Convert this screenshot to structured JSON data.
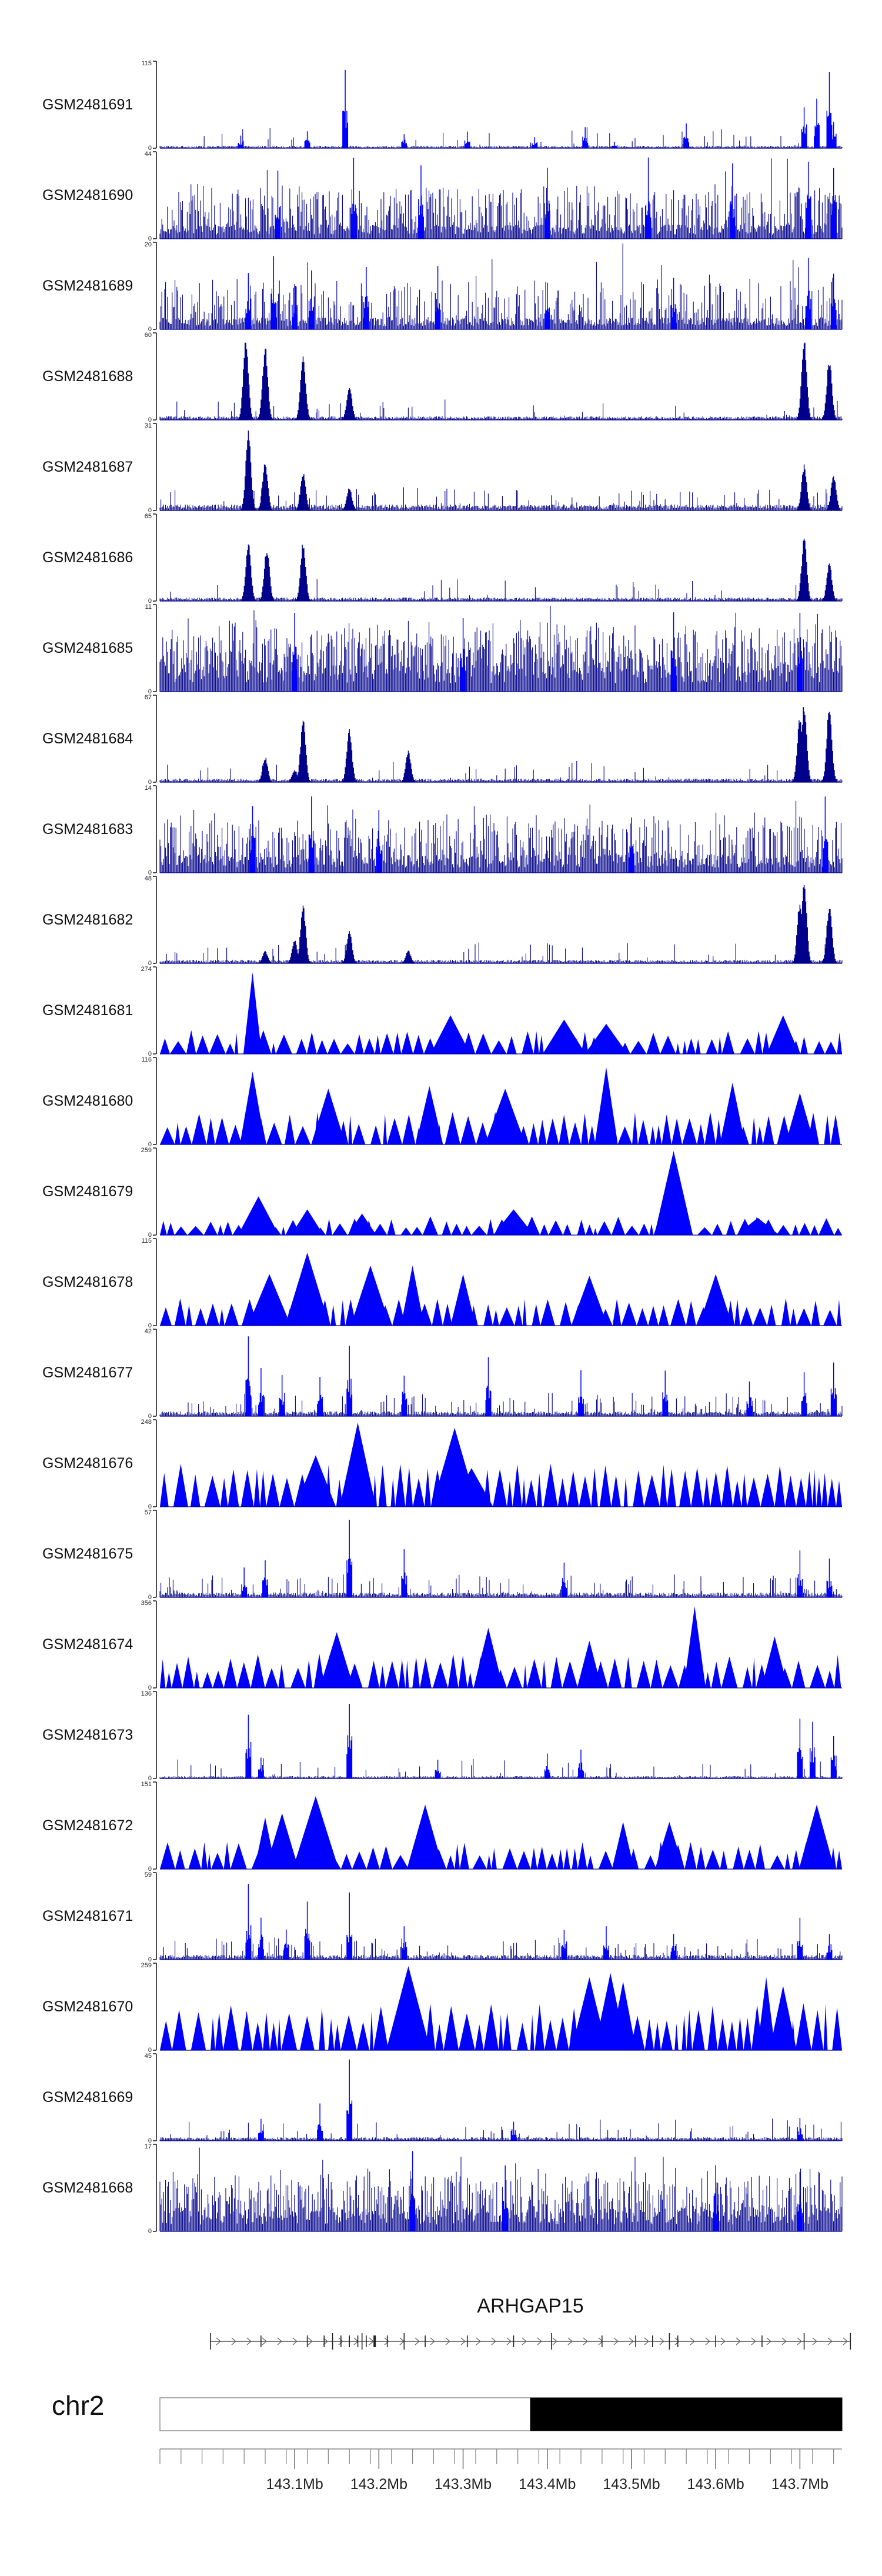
{
  "chart_data": {
    "type": "genome-tracks",
    "colors": {
      "signal": "#0000ff",
      "signal_dark": "#00008b",
      "axis": "#000000"
    },
    "tracks": [
      {
        "label": "GSM2481691",
        "ymax": 115,
        "ymin": 0,
        "style": "spike",
        "baseline": 0.02,
        "noise": 0.06,
        "peaks": [
          [
            143.16,
            1.0
          ],
          [
            143.036,
            0.17
          ],
          [
            143.115,
            0.23
          ],
          [
            143.23,
            0.19
          ],
          [
            143.305,
            0.2
          ],
          [
            143.385,
            0.14
          ],
          [
            143.445,
            0.26
          ],
          [
            143.48,
            0.08
          ],
          [
            143.565,
            0.3
          ],
          [
            143.705,
            0.55
          ],
          [
            143.72,
            0.62
          ],
          [
            143.735,
            0.95
          ],
          [
            143.74,
            0.35
          ]
        ]
      },
      {
        "label": "GSM2481690",
        "ymax": 44,
        "ymin": 0,
        "style": "dense",
        "baseline": 0.12,
        "noise": 0.5,
        "peaks": [
          [
            143.08,
            0.9
          ],
          [
            143.17,
            0.95
          ],
          [
            143.25,
            0.98
          ],
          [
            143.4,
            0.9
          ],
          [
            143.52,
            0.95
          ],
          [
            143.62,
            0.96
          ],
          [
            143.71,
            0.97
          ],
          [
            143.74,
            0.95
          ]
        ]
      },
      {
        "label": "GSM2481689",
        "ymax": 20,
        "ymin": 0,
        "style": "dense",
        "baseline": 0.1,
        "noise": 0.35,
        "peaks": [
          [
            143.045,
            0.75
          ],
          [
            143.075,
            0.95
          ],
          [
            143.1,
            0.6
          ],
          [
            143.12,
            0.8
          ],
          [
            143.185,
            0.85
          ],
          [
            143.27,
            0.8
          ],
          [
            143.4,
            0.55
          ],
          [
            143.55,
            0.6
          ],
          [
            143.71,
            0.95
          ],
          [
            143.74,
            0.7
          ]
        ]
      },
      {
        "label": "GSM2481688",
        "ymax": 60,
        "ymin": 0,
        "style": "peaks",
        "baseline": 0.03,
        "noise": 0.05,
        "peaks": [
          [
            143.042,
            0.95
          ],
          [
            143.065,
            0.88
          ],
          [
            143.11,
            0.78
          ],
          [
            143.165,
            0.42
          ],
          [
            143.705,
            0.95
          ],
          [
            143.735,
            0.72
          ]
        ]
      },
      {
        "label": "GSM2481687",
        "ymax": 31,
        "ymin": 0,
        "style": "peaks",
        "baseline": 0.05,
        "noise": 0.14,
        "peaks": [
          [
            143.045,
            0.95
          ],
          [
            143.065,
            0.6
          ],
          [
            143.11,
            0.45
          ],
          [
            143.165,
            0.28
          ],
          [
            143.705,
            0.55
          ],
          [
            143.74,
            0.42
          ]
        ]
      },
      {
        "label": "GSM2481686",
        "ymax": 65,
        "ymin": 0,
        "style": "peaks",
        "baseline": 0.03,
        "noise": 0.05,
        "peaks": [
          [
            143.045,
            0.7
          ],
          [
            143.067,
            0.65
          ],
          [
            143.11,
            0.7
          ],
          [
            143.705,
            0.75
          ],
          [
            143.735,
            0.45
          ]
        ]
      },
      {
        "label": "GSM2481685",
        "ymax": 11,
        "ymin": 0,
        "style": "dense",
        "baseline": 0.25,
        "noise": 0.7,
        "peaks": [
          [
            143.1,
            1.0
          ],
          [
            143.3,
            0.95
          ],
          [
            143.55,
            0.98
          ],
          [
            143.7,
            0.95
          ]
        ]
      },
      {
        "label": "GSM2481684",
        "ymax": 67,
        "ymin": 0,
        "style": "peaks",
        "baseline": 0.03,
        "noise": 0.05,
        "peaks": [
          [
            143.065,
            0.3
          ],
          [
            143.1,
            0.15
          ],
          [
            143.11,
            0.75
          ],
          [
            143.165,
            0.62
          ],
          [
            143.235,
            0.38
          ],
          [
            143.7,
            0.8
          ],
          [
            143.705,
            0.95
          ],
          [
            143.735,
            0.9
          ]
        ]
      },
      {
        "label": "GSM2481683",
        "ymax": 14,
        "ymin": 0,
        "style": "dense",
        "baseline": 0.15,
        "noise": 0.55,
        "peaks": [
          [
            143.05,
            0.9
          ],
          [
            143.12,
            0.95
          ],
          [
            143.2,
            0.8
          ],
          [
            143.5,
            0.75
          ],
          [
            143.73,
            0.9
          ]
        ]
      },
      {
        "label": "GSM2481682",
        "ymax": 48,
        "ymin": 0,
        "style": "peaks",
        "baseline": 0.03,
        "noise": 0.06,
        "peaks": [
          [
            143.065,
            0.15
          ],
          [
            143.1,
            0.28
          ],
          [
            143.11,
            0.7
          ],
          [
            143.165,
            0.38
          ],
          [
            143.235,
            0.15
          ],
          [
            143.7,
            0.75
          ],
          [
            143.705,
            0.95
          ],
          [
            143.735,
            0.7
          ]
        ]
      },
      {
        "label": "GSM2481681",
        "ymax": 274,
        "ymin": 0,
        "style": "triangles",
        "tri_min": 0.12,
        "tri_max": 0.28,
        "peaks": [
          [
            143.05,
            0.95
          ],
          [
            143.285,
            0.45
          ],
          [
            143.42,
            0.4
          ],
          [
            143.47,
            0.35
          ],
          [
            143.68,
            0.45
          ]
        ]
      },
      {
        "label": "GSM2481680",
        "ymax": 116,
        "ymin": 0,
        "style": "triangles",
        "tri_min": 0.2,
        "tri_max": 0.38,
        "peaks": [
          [
            143.05,
            0.85
          ],
          [
            143.14,
            0.65
          ],
          [
            143.26,
            0.68
          ],
          [
            143.35,
            0.65
          ],
          [
            143.47,
            0.9
          ],
          [
            143.62,
            0.72
          ],
          [
            143.7,
            0.6
          ]
        ]
      },
      {
        "label": "GSM2481679",
        "ymax": 259,
        "ymin": 0,
        "style": "triangles",
        "tri_min": 0.08,
        "tri_max": 0.22,
        "peaks": [
          [
            143.057,
            0.45
          ],
          [
            143.115,
            0.3
          ],
          [
            143.18,
            0.25
          ],
          [
            143.36,
            0.3
          ],
          [
            143.55,
            0.98
          ],
          [
            143.65,
            0.2
          ]
        ]
      },
      {
        "label": "GSM2481678",
        "ymax": 115,
        "ymin": 0,
        "style": "triangles",
        "tri_min": 0.18,
        "tri_max": 0.32,
        "peaks": [
          [
            143.07,
            0.6
          ],
          [
            143.115,
            0.85
          ],
          [
            143.19,
            0.7
          ],
          [
            143.24,
            0.7
          ],
          [
            143.3,
            0.6
          ],
          [
            143.45,
            0.58
          ],
          [
            143.6,
            0.6
          ]
        ]
      },
      {
        "label": "GSM2481677",
        "ymax": 42,
        "ymin": 0,
        "style": "spike",
        "baseline": 0.04,
        "noise": 0.15,
        "peaks": [
          [
            143.045,
            0.95
          ],
          [
            143.06,
            0.58
          ],
          [
            143.085,
            0.55
          ],
          [
            143.13,
            0.5
          ],
          [
            143.165,
            0.85
          ],
          [
            143.23,
            0.55
          ],
          [
            143.33,
            0.75
          ],
          [
            143.44,
            0.55
          ],
          [
            143.54,
            0.55
          ],
          [
            143.64,
            0.45
          ],
          [
            143.705,
            0.55
          ],
          [
            143.74,
            0.7
          ]
        ]
      },
      {
        "label": "GSM2481676",
        "ymax": 248,
        "ymin": 0,
        "style": "triangles",
        "tri_min": 0.3,
        "tri_max": 0.5,
        "peaks": [
          [
            143.125,
            0.6
          ],
          [
            143.175,
            0.98
          ],
          [
            143.29,
            0.92
          ],
          [
            143.31,
            0.45
          ]
        ]
      },
      {
        "label": "GSM2481675",
        "ymax": 57,
        "ymin": 0,
        "style": "spike",
        "baseline": 0.04,
        "noise": 0.14,
        "peaks": [
          [
            143.165,
            0.95
          ],
          [
            143.065,
            0.45
          ],
          [
            143.04,
            0.35
          ],
          [
            143.23,
            0.65
          ],
          [
            143.42,
            0.45
          ],
          [
            143.7,
            0.55
          ],
          [
            143.735,
            0.48
          ]
        ]
      },
      {
        "label": "GSM2481674",
        "ymax": 356,
        "ymin": 0,
        "style": "triangles",
        "tri_min": 0.18,
        "tri_max": 0.4,
        "peaks": [
          [
            143.15,
            0.65
          ],
          [
            143.33,
            0.7
          ],
          [
            143.45,
            0.55
          ],
          [
            143.575,
            0.95
          ],
          [
            143.67,
            0.6
          ]
        ]
      },
      {
        "label": "GSM2481673",
        "ymax": 136,
        "ymin": 0,
        "style": "spike",
        "baseline": 0.02,
        "noise": 0.06,
        "peaks": [
          [
            143.045,
            0.8
          ],
          [
            143.06,
            0.25
          ],
          [
            143.165,
            1.0
          ],
          [
            143.27,
            0.22
          ],
          [
            143.4,
            0.3
          ],
          [
            143.44,
            0.38
          ],
          [
            143.7,
            0.8
          ],
          [
            143.715,
            0.75
          ],
          [
            143.74,
            0.55
          ]
        ]
      },
      {
        "label": "GSM2481672",
        "ymax": 151,
        "ymin": 0,
        "style": "triangles",
        "tri_min": 0.15,
        "tri_max": 0.32,
        "peaks": [
          [
            143.065,
            0.6
          ],
          [
            143.085,
            0.65
          ],
          [
            143.125,
            0.85
          ],
          [
            143.255,
            0.75
          ],
          [
            143.49,
            0.55
          ],
          [
            143.545,
            0.55
          ],
          [
            143.72,
            0.75
          ]
        ]
      },
      {
        "label": "GSM2481671",
        "ymax": 59,
        "ymin": 0,
        "style": "spike",
        "baseline": 0.04,
        "noise": 0.15,
        "peaks": [
          [
            143.045,
            0.9
          ],
          [
            143.06,
            0.55
          ],
          [
            143.09,
            0.4
          ],
          [
            143.115,
            0.7
          ],
          [
            143.165,
            0.8
          ],
          [
            143.23,
            0.45
          ],
          [
            143.42,
            0.4
          ],
          [
            143.47,
            0.4
          ],
          [
            143.55,
            0.35
          ],
          [
            143.7,
            0.5
          ],
          [
            143.735,
            0.35
          ]
        ]
      },
      {
        "label": "GSM2481670",
        "ymax": 259,
        "ymin": 0,
        "style": "triangles",
        "tri_min": 0.3,
        "tri_max": 0.55,
        "peaks": [
          [
            143.235,
            0.98
          ],
          [
            143.45,
            0.85
          ],
          [
            143.475,
            0.9
          ],
          [
            143.49,
            0.8
          ],
          [
            143.66,
            0.85
          ],
          [
            143.68,
            0.75
          ]
        ]
      },
      {
        "label": "GSM2481669",
        "ymax": 45,
        "ymin": 0,
        "style": "spike",
        "baseline": 0.03,
        "noise": 0.08,
        "peaks": [
          [
            143.165,
            0.95
          ],
          [
            143.13,
            0.45
          ],
          [
            143.06,
            0.3
          ],
          [
            143.36,
            0.25
          ],
          [
            143.7,
            0.3
          ]
        ]
      },
      {
        "label": "GSM2481668",
        "ymax": 17,
        "ymin": 0,
        "style": "dense",
        "baseline": 0.2,
        "noise": 0.55,
        "peaks": [
          [
            143.24,
            0.95
          ],
          [
            143.35,
            0.85
          ],
          [
            143.6,
            0.9
          ],
          [
            143.7,
            0.8
          ]
        ]
      }
    ],
    "gene": {
      "name": "ARHGAP15",
      "start": 143.0,
      "end": 143.76,
      "strand": "+",
      "exons": [
        143.0,
        143.06,
        143.115,
        143.135,
        143.145,
        143.155,
        143.165,
        143.175,
        143.18,
        143.185,
        143.195,
        143.21,
        143.23,
        143.255,
        143.305,
        143.36,
        143.405,
        143.465,
        143.505,
        143.525,
        143.545,
        143.555,
        143.6,
        143.655,
        143.705,
        143.76
      ]
    },
    "ideogram": {
      "chromosome": "chr2",
      "light_band": [
        142.94,
        143.38
      ],
      "dark_band": [
        143.38,
        143.75
      ],
      "x_range": [
        142.94,
        143.75
      ],
      "minor_tick_step": 0.025,
      "ticks": [
        {
          "value": 143.1,
          "label": "143.1Mb"
        },
        {
          "value": 143.2,
          "label": "143.2Mb"
        },
        {
          "value": 143.3,
          "label": "143.3Mb"
        },
        {
          "value": 143.4,
          "label": "143.4Mb"
        },
        {
          "value": 143.5,
          "label": "143.5Mb"
        },
        {
          "value": 143.6,
          "label": "143.6Mb"
        },
        {
          "value": 143.7,
          "label": "143.7Mb"
        }
      ]
    }
  }
}
